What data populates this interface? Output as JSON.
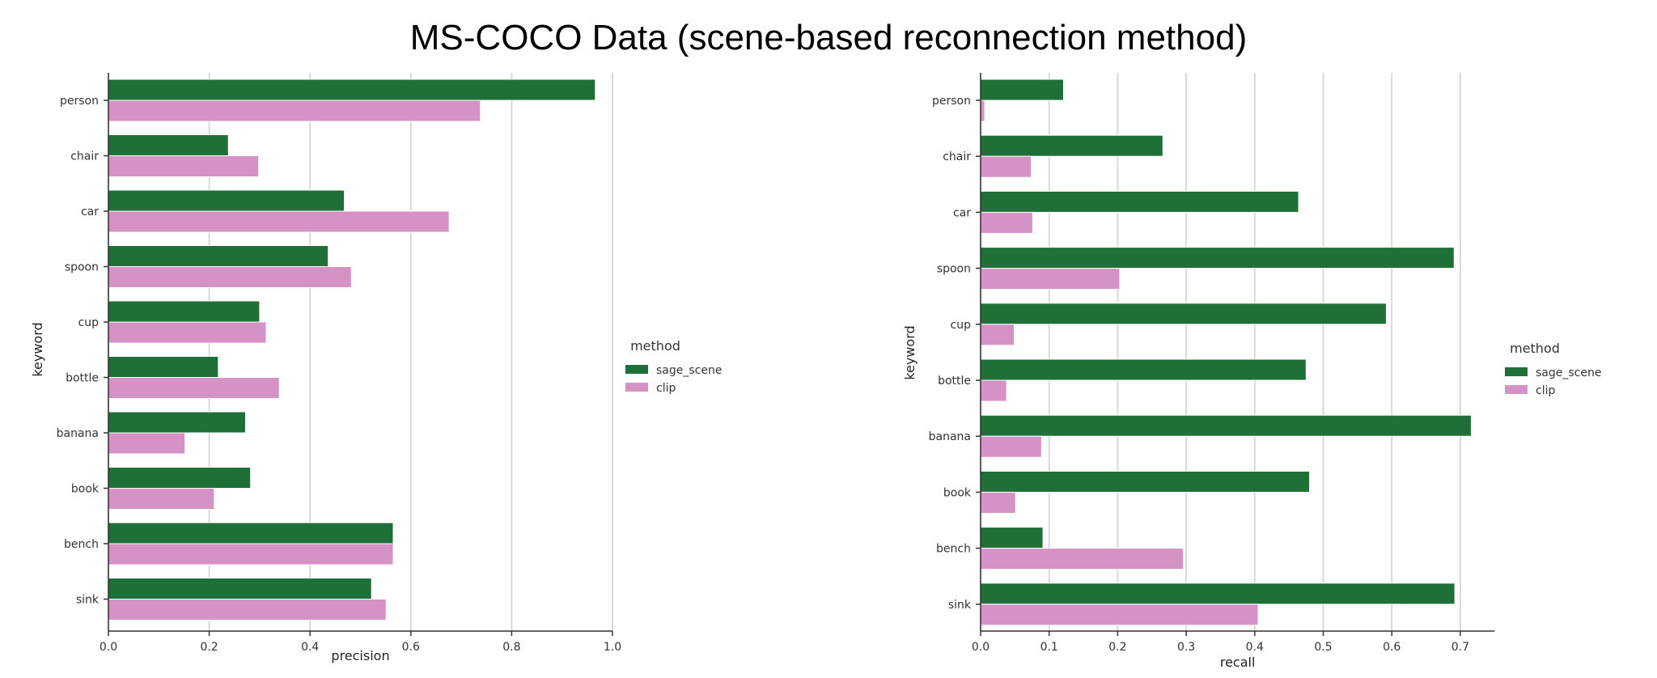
{
  "page": {
    "title": "MS-COCO Data (scene-based reconnection method)"
  },
  "chart_data": [
    {
      "type": "bar",
      "orientation": "horizontal",
      "categories": [
        "person",
        "chair",
        "car",
        "spoon",
        "cup",
        "bottle",
        "banana",
        "book",
        "bench",
        "sink"
      ],
      "series": [
        {
          "name": "sage_scene",
          "color": "#1e6f38",
          "values": [
            0.966,
            0.238,
            0.468,
            0.436,
            0.3,
            0.218,
            0.272,
            0.282,
            0.565,
            0.522
          ]
        },
        {
          "name": "clip",
          "color": "#d492c5",
          "values": [
            0.738,
            0.298,
            0.676,
            0.482,
            0.313,
            0.339,
            0.152,
            0.21,
            0.565,
            0.551
          ]
        }
      ],
      "xlabel": "precision",
      "ylabel": "keyword",
      "xlim": [
        0,
        1.0
      ],
      "xticks": [
        "0.0",
        "0.2",
        "0.4",
        "0.6",
        "0.8",
        "1.0"
      ],
      "xtick_values": [
        0,
        0.2,
        0.4,
        0.6,
        0.8,
        1.0
      ],
      "grid": "vertical",
      "legend": {
        "title": "method",
        "placement": "right-outside",
        "entries": [
          "sage_scene",
          "clip"
        ]
      }
    },
    {
      "type": "bar",
      "orientation": "horizontal",
      "categories": [
        "person",
        "chair",
        "car",
        "spoon",
        "cup",
        "bottle",
        "banana",
        "book",
        "bench",
        "sink"
      ],
      "series": [
        {
          "name": "sage_scene",
          "color": "#1e6f38",
          "values": [
            0.121,
            0.266,
            0.464,
            0.691,
            0.592,
            0.475,
            0.716,
            0.48,
            0.091,
            0.692
          ]
        },
        {
          "name": "clip",
          "color": "#d492c5",
          "values": [
            0.006,
            0.074,
            0.076,
            0.203,
            0.049,
            0.038,
            0.089,
            0.051,
            0.296,
            0.405
          ]
        }
      ],
      "xlabel": "recall",
      "ylabel": "keyword",
      "xlim": [
        0,
        0.75
      ],
      "xticks": [
        "0.0",
        "0.1",
        "0.2",
        "0.3",
        "0.4",
        "0.5",
        "0.6",
        "0.7"
      ],
      "xtick_values": [
        0,
        0.1,
        0.2,
        0.3,
        0.4,
        0.5,
        0.6,
        0.7
      ],
      "grid": "vertical",
      "legend": {
        "title": "method",
        "placement": "right-outside",
        "entries": [
          "sage_scene",
          "clip"
        ]
      }
    }
  ]
}
